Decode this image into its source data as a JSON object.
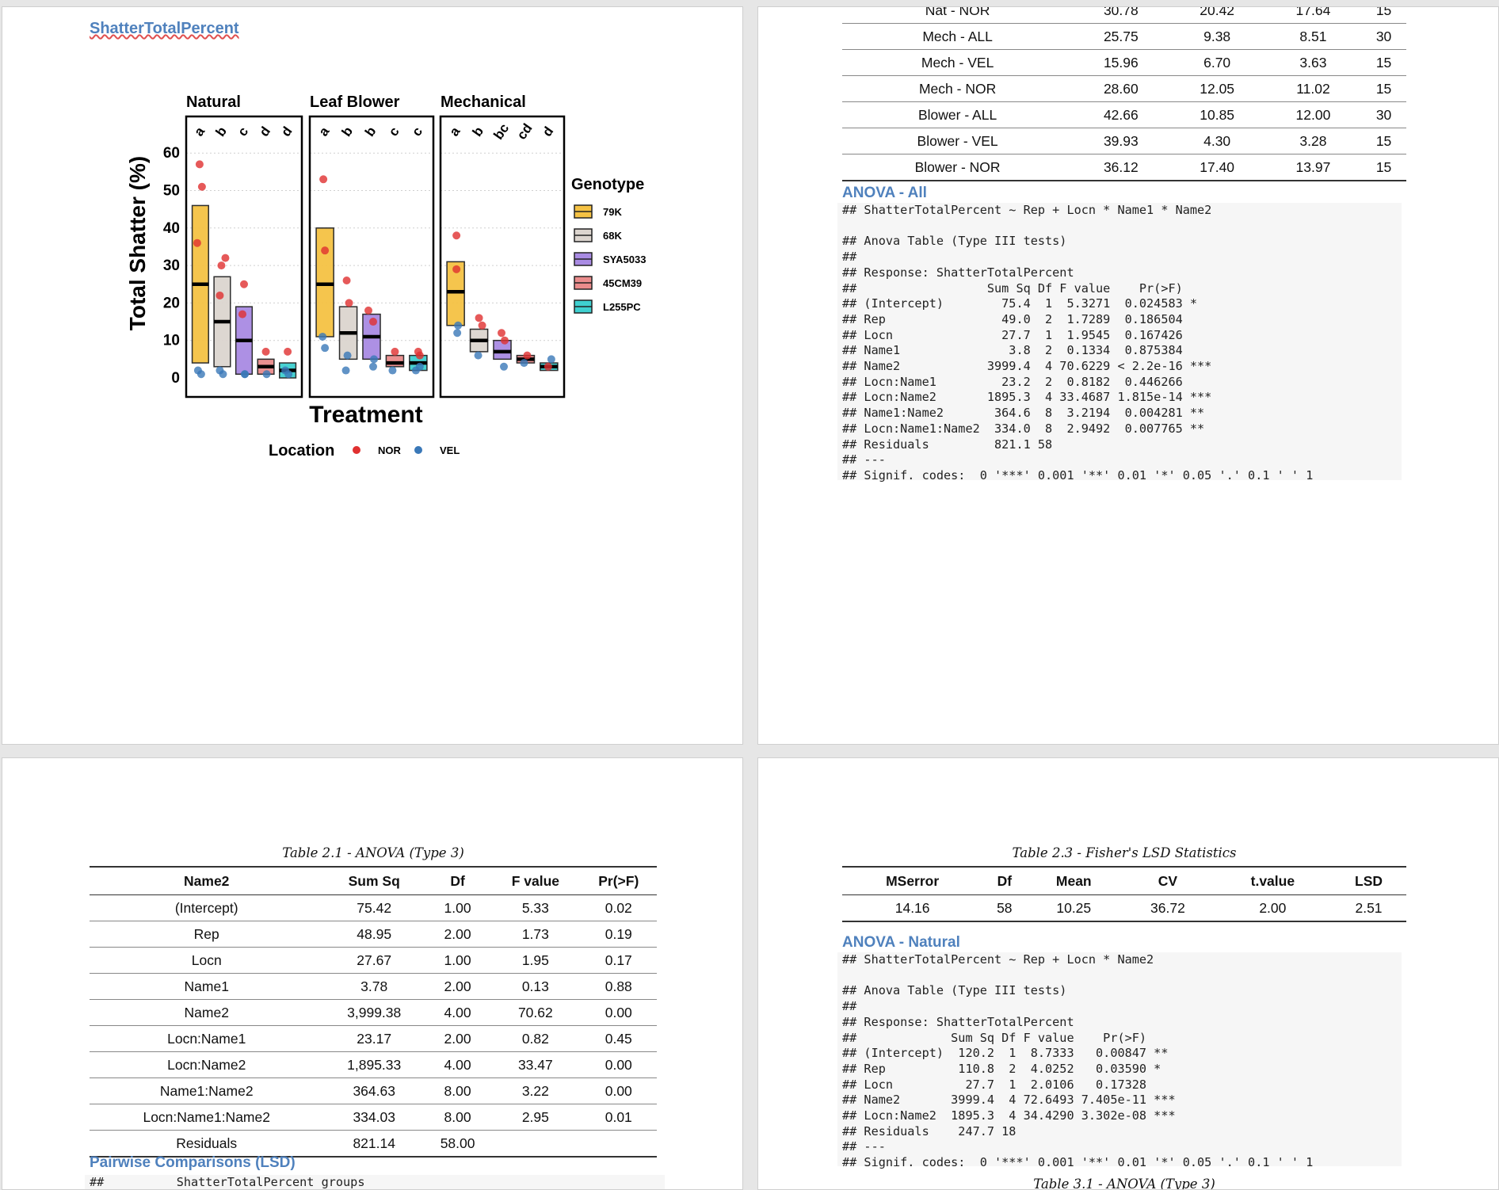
{
  "page1": {
    "title": "ShatterTotalPercent",
    "figure": {
      "panels": [
        "Natural",
        "Leaf Blower",
        "Mechanical"
      ],
      "letters": [
        [
          "a",
          "b",
          "c",
          "d",
          "d"
        ],
        [
          "a",
          "b",
          "b",
          "c",
          "c"
        ],
        [
          "a",
          "b",
          "bc",
          "cd",
          "d"
        ]
      ],
      "ylabel": "Total Shatter (%)",
      "xlabel": "Treatment",
      "yticks": [
        "0",
        "10",
        "20",
        "30",
        "40",
        "50",
        "60"
      ],
      "legend_title": "Genotype",
      "genotypes": [
        "79K",
        "68K",
        "SYA5033",
        "45CM39",
        "L255PC"
      ],
      "genotype_colors": [
        "#f5c244",
        "#dcd5cf",
        "#a98be3",
        "#ea8c8c",
        "#3fd0d0"
      ],
      "location_title": "Location",
      "locations": [
        "NOR",
        "VEL"
      ],
      "location_colors": [
        "#e03030",
        "#3a78b8"
      ]
    }
  },
  "chart_data": {
    "type": "box",
    "title": "",
    "xlabel": "Treatment",
    "ylabel": "Total Shatter (%)",
    "ylim": [
      0,
      60
    ],
    "legend": "right",
    "genotypes": [
      "79K",
      "68K",
      "SYA5033",
      "45CM39",
      "L255PC"
    ],
    "panels": [
      {
        "name": "Natural",
        "boxes": [
          {
            "genotype": "79K",
            "q1": 4,
            "median": 25,
            "q3": 46,
            "letter": "a"
          },
          {
            "genotype": "68K",
            "q1": 3,
            "median": 15,
            "q3": 27,
            "letter": "b"
          },
          {
            "genotype": "SYA5033",
            "q1": 1,
            "median": 10,
            "q3": 19,
            "letter": "c"
          },
          {
            "genotype": "45CM39",
            "q1": 1,
            "median": 3,
            "q3": 5,
            "letter": "d"
          },
          {
            "genotype": "L255PC",
            "q1": 0,
            "median": 2,
            "q3": 4,
            "letter": "d"
          }
        ],
        "nor": [
          [
            0,
            57
          ],
          [
            0,
            51
          ],
          [
            0,
            36
          ],
          [
            1,
            32
          ],
          [
            1,
            30
          ],
          [
            1,
            22
          ],
          [
            2,
            25
          ],
          [
            2,
            17
          ],
          [
            3,
            7
          ],
          [
            4,
            7
          ]
        ],
        "vel": [
          [
            0,
            1
          ],
          [
            0,
            2
          ],
          [
            1,
            1
          ],
          [
            1,
            2
          ],
          [
            2,
            1
          ],
          [
            2,
            1
          ],
          [
            3,
            1
          ],
          [
            4,
            1
          ],
          [
            4,
            2
          ]
        ]
      },
      {
        "name": "Leaf Blower",
        "boxes": [
          {
            "genotype": "79K",
            "q1": 11,
            "median": 25,
            "q3": 40,
            "letter": "a"
          },
          {
            "genotype": "68K",
            "q1": 5,
            "median": 12,
            "q3": 19,
            "letter": "b"
          },
          {
            "genotype": "SYA5033",
            "q1": 5,
            "median": 11,
            "q3": 17,
            "letter": "b"
          },
          {
            "genotype": "45CM39",
            "q1": 3,
            "median": 4,
            "q3": 6,
            "letter": "c"
          },
          {
            "genotype": "L255PC",
            "q1": 2,
            "median": 4,
            "q3": 6,
            "letter": "c"
          }
        ],
        "nor": [
          [
            0,
            53
          ],
          [
            0,
            34
          ],
          [
            1,
            26
          ],
          [
            1,
            20
          ],
          [
            2,
            18
          ],
          [
            2,
            15
          ],
          [
            3,
            7
          ],
          [
            4,
            7
          ],
          [
            4,
            6
          ]
        ],
        "vel": [
          [
            0,
            8
          ],
          [
            0,
            11
          ],
          [
            1,
            2
          ],
          [
            1,
            6
          ],
          [
            2,
            3
          ],
          [
            2,
            5
          ],
          [
            3,
            2
          ],
          [
            4,
            2
          ],
          [
            4,
            3
          ]
        ]
      },
      {
        "name": "Mechanical",
        "boxes": [
          {
            "genotype": "79K",
            "q1": 14,
            "median": 23,
            "q3": 31,
            "letter": "a"
          },
          {
            "genotype": "68K",
            "q1": 7,
            "median": 10,
            "q3": 13,
            "letter": "b"
          },
          {
            "genotype": "SYA5033",
            "q1": 5,
            "median": 7,
            "q3": 10,
            "letter": "bc"
          },
          {
            "genotype": "45CM39",
            "q1": 4,
            "median": 5,
            "q3": 6,
            "letter": "cd"
          },
          {
            "genotype": "L255PC",
            "q1": 2,
            "median": 3,
            "q3": 4,
            "letter": "d"
          }
        ],
        "nor": [
          [
            0,
            38
          ],
          [
            0,
            29
          ],
          [
            1,
            16
          ],
          [
            1,
            14
          ],
          [
            2,
            12
          ],
          [
            2,
            10
          ],
          [
            3,
            6
          ],
          [
            4,
            3
          ]
        ],
        "vel": [
          [
            0,
            12
          ],
          [
            0,
            14
          ],
          [
            1,
            6
          ],
          [
            2,
            3
          ],
          [
            3,
            4
          ],
          [
            4,
            5
          ]
        ]
      }
    ]
  },
  "page2": {
    "summary_rows": [
      [
        "Nat - NOR",
        "30.78",
        "20.42",
        "17.64",
        "15"
      ],
      [
        "Mech - ALL",
        "25.75",
        "9.38",
        "8.51",
        "30"
      ],
      [
        "Mech - VEL",
        "15.96",
        "6.70",
        "3.63",
        "15"
      ],
      [
        "Mech - NOR",
        "28.60",
        "12.05",
        "11.02",
        "15"
      ],
      [
        "Blower - ALL",
        "42.66",
        "10.85",
        "12.00",
        "30"
      ],
      [
        "Blower - VEL",
        "39.93",
        "4.30",
        "3.28",
        "15"
      ],
      [
        "Blower - NOR",
        "36.12",
        "17.40",
        "13.97",
        "15"
      ]
    ],
    "heading": "ANOVA - All",
    "code_lines": [
      "## ShatterTotalPercent ~ Rep + Locn * Name1 * Name2",
      "",
      "## Anova Table (Type III tests)",
      "##",
      "## Response: ShatterTotalPercent",
      "##                  Sum Sq Df F value    Pr(>F)",
      "## (Intercept)        75.4  1  5.3271  0.024583 *",
      "## Rep                49.0  2  1.7289  0.186504",
      "## Locn               27.7  1  1.9545  0.167426",
      "## Name1               3.8  2  0.1334  0.875384",
      "## Name2            3999.4  4 70.6229 < 2.2e-16 ***",
      "## Locn:Name1         23.2  2  0.8182  0.446266",
      "## Locn:Name2       1895.3  4 33.4687 1.815e-14 ***",
      "## Name1:Name2       364.6  8  3.2194  0.004281 **",
      "## Locn:Name1:Name2  334.0  8  2.9492  0.007765 **",
      "## Residuals         821.1 58",
      "## ---",
      "## Signif. codes:  0 '***' 0.001 '**' 0.01 '*' 0.05 '.' 0.1 ' ' 1"
    ]
  },
  "page3": {
    "caption": "Table 2.1 - ANOVA (Type 3)",
    "headers": [
      "Name2",
      "Sum Sq",
      "Df",
      "F value",
      "Pr(>F)"
    ],
    "rows": [
      [
        "(Intercept)",
        "75.42",
        "1.00",
        "5.33",
        "0.02"
      ],
      [
        "Rep",
        "48.95",
        "2.00",
        "1.73",
        "0.19"
      ],
      [
        "Locn",
        "27.67",
        "1.00",
        "1.95",
        "0.17"
      ],
      [
        "Name1",
        "3.78",
        "2.00",
        "0.13",
        "0.88"
      ],
      [
        "Name2",
        "3,999.38",
        "4.00",
        "70.62",
        "0.00"
      ],
      [
        "Locn:Name1",
        "23.17",
        "2.00",
        "0.82",
        "0.45"
      ],
      [
        "Locn:Name2",
        "1,895.33",
        "4.00",
        "33.47",
        "0.00"
      ],
      [
        "Name1:Name2",
        "364.63",
        "8.00",
        "3.22",
        "0.00"
      ],
      [
        "Locn:Name1:Name2",
        "334.03",
        "8.00",
        "2.95",
        "0.01"
      ],
      [
        "Residuals",
        "821.14",
        "58.00",
        "",
        ""
      ]
    ],
    "heading": "Pairwise Comparisons (LSD)",
    "code_line": "##          ShatterTotalPercent groups"
  },
  "page4": {
    "caption": "Table 2.3 - Fisher's LSD Statistics",
    "headers": [
      "MSerror",
      "Df",
      "Mean",
      "CV",
      "t.value",
      "LSD"
    ],
    "row": [
      "14.16",
      "58",
      "10.25",
      "36.72",
      "2.00",
      "2.51"
    ],
    "heading": "ANOVA - Natural",
    "code_lines": [
      "## ShatterTotalPercent ~ Rep + Locn * Name2",
      "",
      "## Anova Table (Type III tests)",
      "##",
      "## Response: ShatterTotalPercent",
      "##             Sum Sq Df F value    Pr(>F)",
      "## (Intercept)  120.2  1  8.7333   0.00847 **",
      "## Rep          110.8  2  4.0252   0.03590 *",
      "## Locn          27.7  1  2.0106   0.17328",
      "## Name2       3999.4  4 72.6493 7.405e-11 ***",
      "## Locn:Name2  1895.3  4 34.4290 3.302e-08 ***",
      "## Residuals    247.7 18",
      "## ---",
      "## Signif. codes:  0 '***' 0.001 '**' 0.01 '*' 0.05 '.' 0.1 ' ' 1"
    ],
    "next_caption": "Table 3.1 - ANOVA (Type 3)"
  }
}
